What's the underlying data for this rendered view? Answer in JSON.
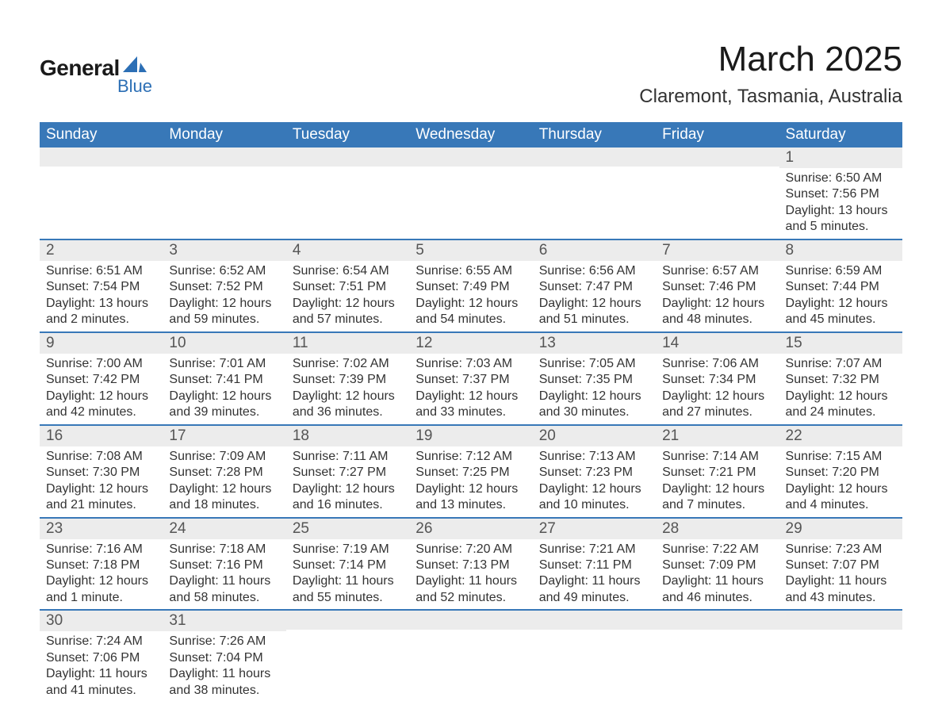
{
  "logo": {
    "text_main": "General",
    "text_sub": "Blue",
    "shape_color": "#2c6fb5",
    "main_color": "#1a1a1a",
    "sub_color": "#2c6fb5"
  },
  "header": {
    "month_title": "March 2025",
    "location": "Claremont, Tasmania, Australia"
  },
  "calendar": {
    "type": "table",
    "header_bg": "#3878b8",
    "header_fg": "#ffffff",
    "row_border_color": "#3878b8",
    "day_number_bg": "#ececec",
    "day_number_fg": "#555555",
    "body_fg": "#333333",
    "columns": [
      "Sunday",
      "Monday",
      "Tuesday",
      "Wednesday",
      "Thursday",
      "Friday",
      "Saturday"
    ],
    "header_fontsize": 19,
    "daynum_fontsize": 19,
    "body_fontsize": 16,
    "weeks": [
      [
        {
          "day": "",
          "sunrise": "",
          "sunset": "",
          "daylight": ""
        },
        {
          "day": "",
          "sunrise": "",
          "sunset": "",
          "daylight": ""
        },
        {
          "day": "",
          "sunrise": "",
          "sunset": "",
          "daylight": ""
        },
        {
          "day": "",
          "sunrise": "",
          "sunset": "",
          "daylight": ""
        },
        {
          "day": "",
          "sunrise": "",
          "sunset": "",
          "daylight": ""
        },
        {
          "day": "",
          "sunrise": "",
          "sunset": "",
          "daylight": ""
        },
        {
          "day": "1",
          "sunrise": "Sunrise: 6:50 AM",
          "sunset": "Sunset: 7:56 PM",
          "daylight": "Daylight: 13 hours and 5 minutes."
        }
      ],
      [
        {
          "day": "2",
          "sunrise": "Sunrise: 6:51 AM",
          "sunset": "Sunset: 7:54 PM",
          "daylight": "Daylight: 13 hours and 2 minutes."
        },
        {
          "day": "3",
          "sunrise": "Sunrise: 6:52 AM",
          "sunset": "Sunset: 7:52 PM",
          "daylight": "Daylight: 12 hours and 59 minutes."
        },
        {
          "day": "4",
          "sunrise": "Sunrise: 6:54 AM",
          "sunset": "Sunset: 7:51 PM",
          "daylight": "Daylight: 12 hours and 57 minutes."
        },
        {
          "day": "5",
          "sunrise": "Sunrise: 6:55 AM",
          "sunset": "Sunset: 7:49 PM",
          "daylight": "Daylight: 12 hours and 54 minutes."
        },
        {
          "day": "6",
          "sunrise": "Sunrise: 6:56 AM",
          "sunset": "Sunset: 7:47 PM",
          "daylight": "Daylight: 12 hours and 51 minutes."
        },
        {
          "day": "7",
          "sunrise": "Sunrise: 6:57 AM",
          "sunset": "Sunset: 7:46 PM",
          "daylight": "Daylight: 12 hours and 48 minutes."
        },
        {
          "day": "8",
          "sunrise": "Sunrise: 6:59 AM",
          "sunset": "Sunset: 7:44 PM",
          "daylight": "Daylight: 12 hours and 45 minutes."
        }
      ],
      [
        {
          "day": "9",
          "sunrise": "Sunrise: 7:00 AM",
          "sunset": "Sunset: 7:42 PM",
          "daylight": "Daylight: 12 hours and 42 minutes."
        },
        {
          "day": "10",
          "sunrise": "Sunrise: 7:01 AM",
          "sunset": "Sunset: 7:41 PM",
          "daylight": "Daylight: 12 hours and 39 minutes."
        },
        {
          "day": "11",
          "sunrise": "Sunrise: 7:02 AM",
          "sunset": "Sunset: 7:39 PM",
          "daylight": "Daylight: 12 hours and 36 minutes."
        },
        {
          "day": "12",
          "sunrise": "Sunrise: 7:03 AM",
          "sunset": "Sunset: 7:37 PM",
          "daylight": "Daylight: 12 hours and 33 minutes."
        },
        {
          "day": "13",
          "sunrise": "Sunrise: 7:05 AM",
          "sunset": "Sunset: 7:35 PM",
          "daylight": "Daylight: 12 hours and 30 minutes."
        },
        {
          "day": "14",
          "sunrise": "Sunrise: 7:06 AM",
          "sunset": "Sunset: 7:34 PM",
          "daylight": "Daylight: 12 hours and 27 minutes."
        },
        {
          "day": "15",
          "sunrise": "Sunrise: 7:07 AM",
          "sunset": "Sunset: 7:32 PM",
          "daylight": "Daylight: 12 hours and 24 minutes."
        }
      ],
      [
        {
          "day": "16",
          "sunrise": "Sunrise: 7:08 AM",
          "sunset": "Sunset: 7:30 PM",
          "daylight": "Daylight: 12 hours and 21 minutes."
        },
        {
          "day": "17",
          "sunrise": "Sunrise: 7:09 AM",
          "sunset": "Sunset: 7:28 PM",
          "daylight": "Daylight: 12 hours and 18 minutes."
        },
        {
          "day": "18",
          "sunrise": "Sunrise: 7:11 AM",
          "sunset": "Sunset: 7:27 PM",
          "daylight": "Daylight: 12 hours and 16 minutes."
        },
        {
          "day": "19",
          "sunrise": "Sunrise: 7:12 AM",
          "sunset": "Sunset: 7:25 PM",
          "daylight": "Daylight: 12 hours and 13 minutes."
        },
        {
          "day": "20",
          "sunrise": "Sunrise: 7:13 AM",
          "sunset": "Sunset: 7:23 PM",
          "daylight": "Daylight: 12 hours and 10 minutes."
        },
        {
          "day": "21",
          "sunrise": "Sunrise: 7:14 AM",
          "sunset": "Sunset: 7:21 PM",
          "daylight": "Daylight: 12 hours and 7 minutes."
        },
        {
          "day": "22",
          "sunrise": "Sunrise: 7:15 AM",
          "sunset": "Sunset: 7:20 PM",
          "daylight": "Daylight: 12 hours and 4 minutes."
        }
      ],
      [
        {
          "day": "23",
          "sunrise": "Sunrise: 7:16 AM",
          "sunset": "Sunset: 7:18 PM",
          "daylight": "Daylight: 12 hours and 1 minute."
        },
        {
          "day": "24",
          "sunrise": "Sunrise: 7:18 AM",
          "sunset": "Sunset: 7:16 PM",
          "daylight": "Daylight: 11 hours and 58 minutes."
        },
        {
          "day": "25",
          "sunrise": "Sunrise: 7:19 AM",
          "sunset": "Sunset: 7:14 PM",
          "daylight": "Daylight: 11 hours and 55 minutes."
        },
        {
          "day": "26",
          "sunrise": "Sunrise: 7:20 AM",
          "sunset": "Sunset: 7:13 PM",
          "daylight": "Daylight: 11 hours and 52 minutes."
        },
        {
          "day": "27",
          "sunrise": "Sunrise: 7:21 AM",
          "sunset": "Sunset: 7:11 PM",
          "daylight": "Daylight: 11 hours and 49 minutes."
        },
        {
          "day": "28",
          "sunrise": "Sunrise: 7:22 AM",
          "sunset": "Sunset: 7:09 PM",
          "daylight": "Daylight: 11 hours and 46 minutes."
        },
        {
          "day": "29",
          "sunrise": "Sunrise: 7:23 AM",
          "sunset": "Sunset: 7:07 PM",
          "daylight": "Daylight: 11 hours and 43 minutes."
        }
      ],
      [
        {
          "day": "30",
          "sunrise": "Sunrise: 7:24 AM",
          "sunset": "Sunset: 7:06 PM",
          "daylight": "Daylight: 11 hours and 41 minutes."
        },
        {
          "day": "31",
          "sunrise": "Sunrise: 7:26 AM",
          "sunset": "Sunset: 7:04 PM",
          "daylight": "Daylight: 11 hours and 38 minutes."
        },
        {
          "day": "",
          "sunrise": "",
          "sunset": "",
          "daylight": ""
        },
        {
          "day": "",
          "sunrise": "",
          "sunset": "",
          "daylight": ""
        },
        {
          "day": "",
          "sunrise": "",
          "sunset": "",
          "daylight": ""
        },
        {
          "day": "",
          "sunrise": "",
          "sunset": "",
          "daylight": ""
        },
        {
          "day": "",
          "sunrise": "",
          "sunset": "",
          "daylight": ""
        }
      ]
    ]
  }
}
